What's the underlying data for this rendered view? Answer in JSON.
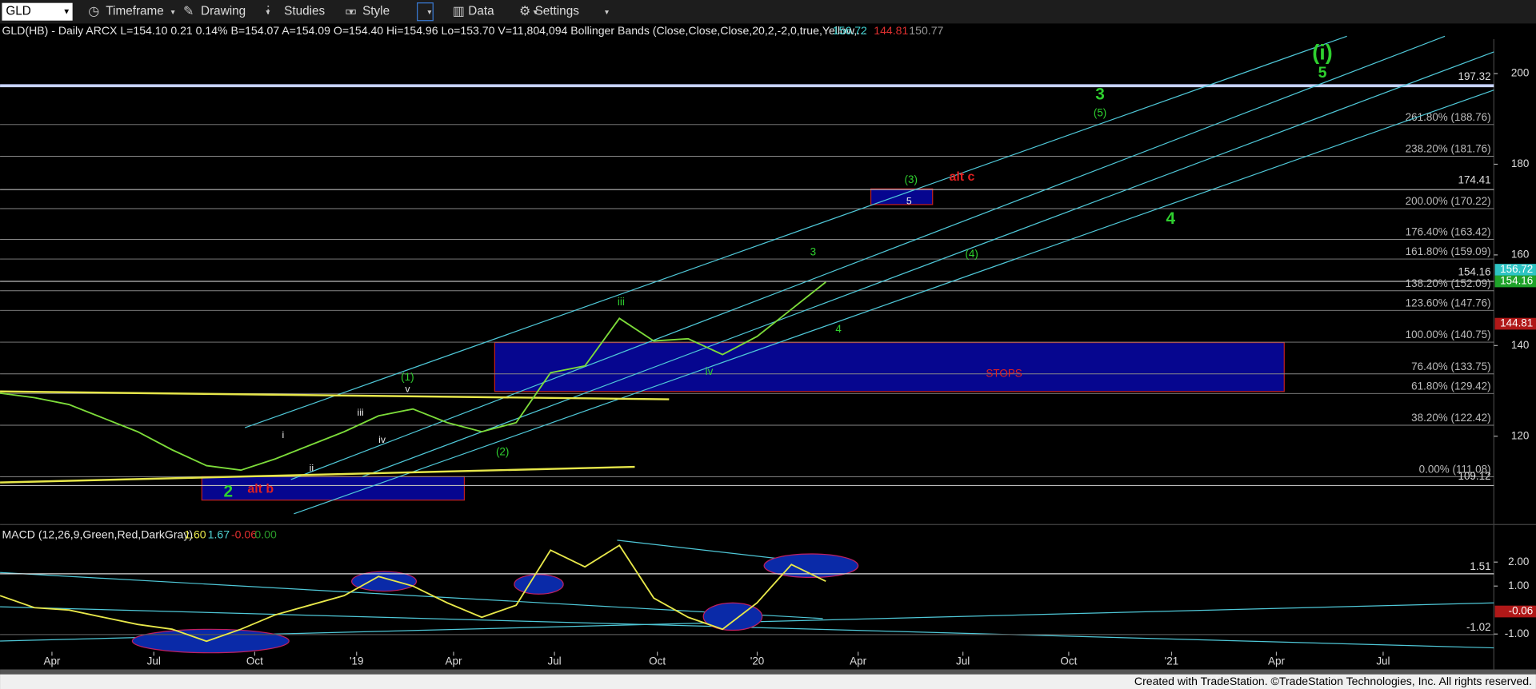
{
  "toolbar": {
    "symbol": "GLD",
    "items": [
      "Timeframe",
      "Drawing",
      "Studies",
      "Style",
      "Data",
      "Settings"
    ]
  },
  "header": {
    "quote": "GLD(HB) - Daily  ARCX  L=154.10  0.21  0.14%  B=154.07  A=154.09  O=154.40  Hi=154.96  Lo=153.70  V=11,804,094  Bollinger Bands (Close,Close,Close,20,2,-2,0,true,Yellow,...",
    "bb_upper": "156.72",
    "bb_lower": "144.81",
    "bb_mid": "150.77"
  },
  "chart_data": [
    {
      "type": "line",
      "title": "GLD(HB) - Daily",
      "series": [
        {
          "name": "GLD",
          "color": "#7ddc3a",
          "values": [
            129.5,
            128.5,
            127,
            124,
            121,
            117,
            113.5,
            112.5,
            115,
            118,
            121,
            124.5,
            126,
            123,
            121,
            123,
            134,
            135.5,
            146,
            141,
            141.5,
            138,
            142,
            148,
            154
          ]
        }
      ],
      "ylim": [
        101.8,
        207.6
      ],
      "yticks": [
        120,
        140,
        160,
        180,
        200
      ],
      "x_labels": [
        "Apr",
        "Jul",
        "Oct",
        "'19",
        "Apr",
        "Jul",
        "Oct",
        "'20",
        "Apr",
        "Jul",
        "Oct",
        "'21",
        "Apr",
        "Jul"
      ],
      "fib_levels": [
        {
          "value": 188.76,
          "label": "261.80% (188.76)"
        },
        {
          "value": 181.76,
          "label": "238.20% (181.76)"
        },
        {
          "value": 170.22,
          "label": "200.00% (170.22)"
        },
        {
          "value": 163.42,
          "label": "176.40% (163.42)"
        },
        {
          "value": 159.09,
          "label": "161.80% (159.09)"
        },
        {
          "value": 152.09,
          "label": "138.20% (152.09)"
        },
        {
          "value": 147.76,
          "label": "123.60% (147.76)"
        },
        {
          "value": 140.75,
          "label": "100.00% (140.75)"
        },
        {
          "value": 133.75,
          "label": "76.40% (133.75)"
        },
        {
          "value": 129.42,
          "label": "61.80% (129.42)"
        },
        {
          "value": 122.42,
          "label": "38.20% (122.42)"
        },
        {
          "value": 111.08,
          "label": "0.00% (111.08)"
        }
      ],
      "price_levels": [
        197.32,
        174.41,
        154.16,
        109.12
      ],
      "last_values": [
        {
          "value": 156.72,
          "color": "#2ec4c4"
        },
        {
          "value": 154.16,
          "color": "#1fa32a"
        },
        {
          "value": 144.81,
          "color": "#b01818"
        }
      ],
      "annotations": [
        "(i)",
        "5",
        "3",
        "(5)",
        "(3)",
        "alt c",
        "5",
        "4",
        "(4)",
        "3",
        "iii",
        "4",
        "iv",
        "STOPS",
        "(1)",
        "v",
        "iii",
        "i",
        "iv",
        "(2)",
        "ii",
        "2",
        "alt b"
      ]
    },
    {
      "type": "line",
      "title": "MACD (12,26,9,Green,Red,DarkGray)",
      "header_values": [
        {
          "value": 1.6,
          "label": "1.60",
          "color": "#e8e84a"
        },
        {
          "value": 1.67,
          "label": "1.67",
          "color": "#4fd0d0"
        },
        {
          "value": -0.06,
          "label": "-0.06",
          "color": "#e03030"
        },
        {
          "value": 0,
          "label": "0.00",
          "color": "#2a9a2a"
        }
      ],
      "series": [
        {
          "name": "MACD",
          "color": "#e8e84a",
          "values": [
            0.6,
            0.1,
            0,
            -0.3,
            -0.6,
            -0.8,
            -1.3,
            -0.8,
            -0.2,
            0.2,
            0.6,
            1.4,
            1,
            0.3,
            -0.3,
            0.2,
            2.5,
            1.8,
            2.7,
            0.5,
            -0.3,
            -0.8,
            0.3,
            1.9,
            1.2
          ]
        }
      ],
      "ylim": [
        -1.7,
        3.4
      ],
      "yticks": [
        {
          "value": 2,
          "label": "2.00"
        },
        {
          "value": 1,
          "label": "1.00"
        },
        {
          "value": -1,
          "label": "-1.00"
        }
      ],
      "levels": [
        1.51,
        -1.02
      ],
      "last_value": {
        "value": -0.06,
        "label": "-0.06"
      }
    }
  ],
  "footer": "Created with TradeStation. ©TradeStation Technologies, Inc. All rights reserved."
}
